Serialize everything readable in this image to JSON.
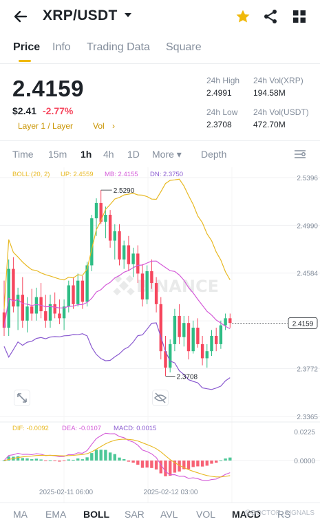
{
  "header": {
    "pair": "XRP/USDT"
  },
  "tabs": [
    {
      "label": "Price",
      "active": true
    },
    {
      "label": "Info"
    },
    {
      "label": "Trading Data"
    },
    {
      "label": "Square"
    }
  ],
  "ticker": {
    "price": "2.4159",
    "usd_price": "$2.41",
    "change": "-2.77%",
    "tag_layer": "Layer 1 / Layer",
    "tag_vol": "Vol",
    "tag_arrow": "›"
  },
  "stats": {
    "high_label": "24h High",
    "high_value": "2.4991",
    "low_label": "24h Low",
    "low_value": "2.3708",
    "vol_xrp_label": "24h Vol(XRP)",
    "vol_xrp_value": "194.58M",
    "vol_usdt_label": "24h Vol(USDT)",
    "vol_usdt_value": "472.70M"
  },
  "timeframes": [
    {
      "label": "Time"
    },
    {
      "label": "15m"
    },
    {
      "label": "1h",
      "active": true
    },
    {
      "label": "4h"
    },
    {
      "label": "1D"
    },
    {
      "label": "More ▾"
    },
    {
      "label": "Depth"
    }
  ],
  "chart_data": {
    "type": "candlestick",
    "interval": "1h",
    "boll": {
      "label": "BOLL:(20, 2)",
      "up_label": "UP: 2.4559",
      "mb_label": "MB: 2.4155",
      "dn_label": "DN: 2.3750"
    },
    "y_ticks": [
      "2.5396",
      "2.4990",
      "2.4584",
      "2.4178",
      "2.3772",
      "2.3365"
    ],
    "y_range": [
      2.3365,
      2.5396
    ],
    "last_price": "2.4159",
    "high_annotation": "2.5290",
    "low_annotation": "2.3708",
    "x_labels": [
      "2025-02-11 06:00",
      "2025-02-12 03:00"
    ],
    "macd": {
      "dif_label": "DIF: -0.0092",
      "dea_label": "DEA: -0.0107",
      "macd_label": "MACD: 0.0015",
      "y_ticks": [
        "0.0225",
        "0.0000"
      ]
    },
    "candles": [
      {
        "o": 2.425,
        "h": 2.452,
        "l": 2.405,
        "c": 2.412
      },
      {
        "o": 2.412,
        "h": 2.47,
        "l": 2.405,
        "c": 2.462
      },
      {
        "o": 2.462,
        "h": 2.472,
        "l": 2.425,
        "c": 2.43
      },
      {
        "o": 2.43,
        "h": 2.446,
        "l": 2.41,
        "c": 2.44
      },
      {
        "o": 2.44,
        "h": 2.455,
        "l": 2.412,
        "c": 2.418
      },
      {
        "o": 2.418,
        "h": 2.438,
        "l": 2.408,
        "c": 2.43
      },
      {
        "o": 2.43,
        "h": 2.445,
        "l": 2.418,
        "c": 2.424
      },
      {
        "o": 2.424,
        "h": 2.446,
        "l": 2.418,
        "c": 2.438
      },
      {
        "o": 2.438,
        "h": 2.45,
        "l": 2.42,
        "c": 2.426
      },
      {
        "o": 2.426,
        "h": 2.44,
        "l": 2.412,
        "c": 2.418
      },
      {
        "o": 2.418,
        "h": 2.44,
        "l": 2.412,
        "c": 2.432
      },
      {
        "o": 2.432,
        "h": 2.442,
        "l": 2.42,
        "c": 2.424
      },
      {
        "o": 2.424,
        "h": 2.436,
        "l": 2.415,
        "c": 2.42
      },
      {
        "o": 2.42,
        "h": 2.436,
        "l": 2.41,
        "c": 2.43
      },
      {
        "o": 2.43,
        "h": 2.452,
        "l": 2.425,
        "c": 2.448
      },
      {
        "o": 2.448,
        "h": 2.455,
        "l": 2.428,
        "c": 2.432
      },
      {
        "o": 2.432,
        "h": 2.458,
        "l": 2.43,
        "c": 2.452
      },
      {
        "o": 2.452,
        "h": 2.456,
        "l": 2.428,
        "c": 2.434
      },
      {
        "o": 2.434,
        "h": 2.468,
        "l": 2.43,
        "c": 2.465
      },
      {
        "o": 2.465,
        "h": 2.508,
        "l": 2.46,
        "c": 2.505
      },
      {
        "o": 2.505,
        "h": 2.522,
        "l": 2.49,
        "c": 2.518
      },
      {
        "o": 2.518,
        "h": 2.529,
        "l": 2.5,
        "c": 2.502
      },
      {
        "o": 2.502,
        "h": 2.515,
        "l": 2.488,
        "c": 2.508
      },
      {
        "o": 2.508,
        "h": 2.512,
        "l": 2.48,
        "c": 2.486
      },
      {
        "o": 2.486,
        "h": 2.5,
        "l": 2.47,
        "c": 2.494
      },
      {
        "o": 2.494,
        "h": 2.5,
        "l": 2.465,
        "c": 2.47
      },
      {
        "o": 2.47,
        "h": 2.486,
        "l": 2.462,
        "c": 2.482
      },
      {
        "o": 2.482,
        "h": 2.49,
        "l": 2.46,
        "c": 2.466
      },
      {
        "o": 2.466,
        "h": 2.48,
        "l": 2.455,
        "c": 2.475
      },
      {
        "o": 2.475,
        "h": 2.482,
        "l": 2.45,
        "c": 2.458
      },
      {
        "o": 2.458,
        "h": 2.466,
        "l": 2.43,
        "c": 2.436
      },
      {
        "o": 2.436,
        "h": 2.465,
        "l": 2.432,
        "c": 2.46
      },
      {
        "o": 2.46,
        "h": 2.47,
        "l": 2.445,
        "c": 2.45
      },
      {
        "o": 2.45,
        "h": 2.455,
        "l": 2.425,
        "c": 2.432
      },
      {
        "o": 2.432,
        "h": 2.438,
        "l": 2.385,
        "c": 2.392
      },
      {
        "o": 2.392,
        "h": 2.405,
        "l": 2.371,
        "c": 2.378
      },
      {
        "o": 2.378,
        "h": 2.402,
        "l": 2.374,
        "c": 2.398
      },
      {
        "o": 2.398,
        "h": 2.428,
        "l": 2.392,
        "c": 2.422
      },
      {
        "o": 2.422,
        "h": 2.432,
        "l": 2.398,
        "c": 2.404
      },
      {
        "o": 2.404,
        "h": 2.422,
        "l": 2.396,
        "c": 2.416
      },
      {
        "o": 2.416,
        "h": 2.422,
        "l": 2.385,
        "c": 2.392
      },
      {
        "o": 2.392,
        "h": 2.418,
        "l": 2.39,
        "c": 2.412
      },
      {
        "o": 2.412,
        "h": 2.42,
        "l": 2.395,
        "c": 2.398
      },
      {
        "o": 2.398,
        "h": 2.405,
        "l": 2.38,
        "c": 2.386
      },
      {
        "o": 2.386,
        "h": 2.398,
        "l": 2.378,
        "c": 2.392
      },
      {
        "o": 2.392,
        "h": 2.41,
        "l": 2.388,
        "c": 2.405
      },
      {
        "o": 2.405,
        "h": 2.412,
        "l": 2.392,
        "c": 2.398
      },
      {
        "o": 2.398,
        "h": 2.418,
        "l": 2.394,
        "c": 2.414
      },
      {
        "o": 2.414,
        "h": 2.424,
        "l": 2.41,
        "c": 2.42
      },
      {
        "o": 2.42,
        "h": 2.424,
        "l": 2.412,
        "c": 2.416
      }
    ]
  },
  "indicators": [
    {
      "label": "MA"
    },
    {
      "label": "EMA"
    },
    {
      "label": "BOLL",
      "active": true
    },
    {
      "label": "SAR"
    },
    {
      "label": "AVL"
    },
    {
      "label": "VOL"
    },
    {
      "label": "MACD",
      "active": true
    },
    {
      "label": "RS"
    }
  ],
  "watermark": "@DOCTOR_SIGNALS",
  "colors": {
    "accent": "#f0b90b",
    "up": "#2ebd85",
    "down": "#f6465d",
    "boll_up": "#e8b923",
    "boll_mb": "#d45ad8",
    "boll_dn": "#8a5ad0"
  }
}
